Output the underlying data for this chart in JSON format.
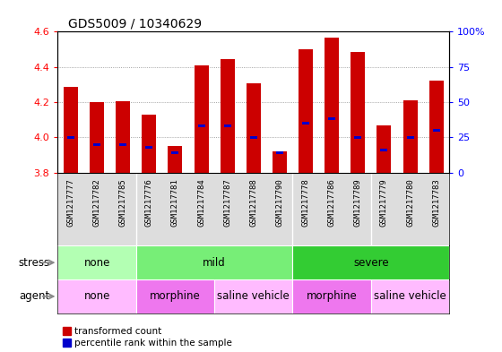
{
  "title": "GDS5009 / 10340629",
  "samples": [
    "GSM1217777",
    "GSM1217782",
    "GSM1217785",
    "GSM1217776",
    "GSM1217781",
    "GSM1217784",
    "GSM1217787",
    "GSM1217788",
    "GSM1217790",
    "GSM1217778",
    "GSM1217786",
    "GSM1217789",
    "GSM1217779",
    "GSM1217780",
    "GSM1217783"
  ],
  "transformed_count": [
    4.285,
    4.2,
    4.205,
    4.13,
    3.95,
    4.41,
    4.445,
    4.305,
    3.92,
    4.5,
    4.565,
    4.485,
    4.065,
    4.21,
    4.32
  ],
  "percentile_rank": [
    25,
    20,
    20,
    18,
    14,
    33,
    33,
    25,
    14,
    35,
    38,
    25,
    16,
    25,
    30
  ],
  "bar_bottom": 3.8,
  "ylim_left": [
    3.8,
    4.6
  ],
  "ylim_right": [
    0,
    100
  ],
  "yticks_left": [
    3.8,
    4.0,
    4.2,
    4.4,
    4.6
  ],
  "yticks_right": [
    0,
    25,
    50,
    75,
    100
  ],
  "ytick_labels_right": [
    "0",
    "25",
    "50",
    "75",
    "100%"
  ],
  "red_color": "#cc0000",
  "blue_color": "#0000cc",
  "stress_groups": [
    {
      "label": "none",
      "start": 0,
      "end": 3,
      "color": "#b3ffb3"
    },
    {
      "label": "mild",
      "start": 3,
      "end": 9,
      "color": "#77ee77"
    },
    {
      "label": "severe",
      "start": 9,
      "end": 15,
      "color": "#33cc33"
    }
  ],
  "agent_groups": [
    {
      "label": "none",
      "start": 0,
      "end": 3,
      "color": "#ffbbff"
    },
    {
      "label": "morphine",
      "start": 3,
      "end": 6,
      "color": "#ee77ee"
    },
    {
      "label": "saline vehicle",
      "start": 6,
      "end": 9,
      "color": "#ffbbff"
    },
    {
      "label": "morphine",
      "start": 9,
      "end": 12,
      "color": "#ee77ee"
    },
    {
      "label": "saline vehicle",
      "start": 12,
      "end": 15,
      "color": "#ffbbff"
    }
  ],
  "tick_area_color": "#dddddd",
  "bg_color": "#ffffff",
  "bar_width": 0.55,
  "tick_label_fontsize": 6.5,
  "title_fontsize": 10,
  "row_label_fontsize": 8.5
}
